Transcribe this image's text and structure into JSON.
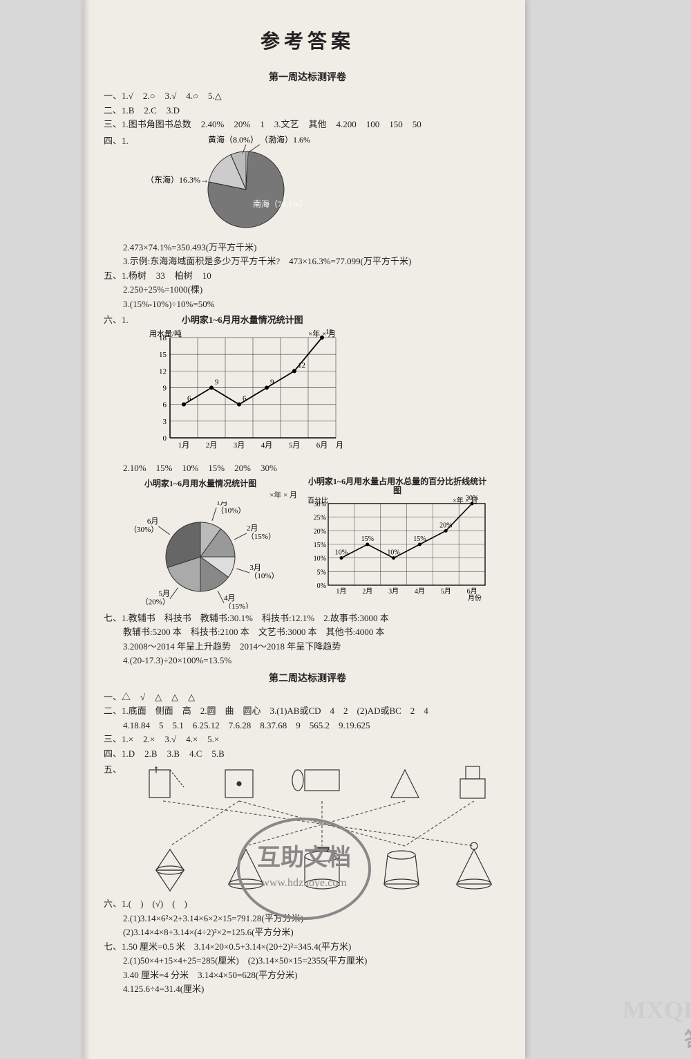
{
  "title": "参考答案",
  "week1": {
    "heading": "第一周达标测评卷",
    "q1": [
      "一、1.√",
      "2.○",
      "3.√",
      "4.○",
      "5.△"
    ],
    "q2": [
      "二、1.B",
      "2.C",
      "3.D"
    ],
    "q3": [
      "三、1.图书角图书总数",
      "2.40%",
      "20%",
      "1",
      "3.文艺",
      "其他",
      "4.200",
      "100",
      "150",
      "50"
    ],
    "q4_label": "四、1.",
    "pie1": {
      "title": "",
      "slices": [
        {
          "label": "南海",
          "pct": 74.1,
          "color": "#777"
        },
        {
          "label": "东海",
          "pct": 16.3,
          "color": "#ccc"
        },
        {
          "label": "黄海",
          "pct": 8.0,
          "color": "#bbb"
        },
        {
          "label": "渤海",
          "pct": 1.6,
          "color": "#eee"
        }
      ],
      "label_donghai": "（东海）16.3%→",
      "label_huanghai": "黄海（8.0%）",
      "label_bohai": "（渤海）1.6%",
      "label_nanhai": "南海（74.1%）"
    },
    "q4_2": "2.473×74.1%=350.493(万平方千米)",
    "q4_3": "3.示例:东海海域面积是多少万平方千米?　473×16.3%=77.099(万平方千米)",
    "q5_1": [
      "五、1.杨树",
      "33",
      "柏树",
      "10"
    ],
    "q5_2": "2.250÷25%=1000(棵)",
    "q5_3": "3.(15%-10%)÷10%=50%",
    "q6_label": "六、1.",
    "line_chart": {
      "title": "小明家1~6月用水量情况统计图",
      "ylabel": "用水量/吨",
      "date": "×年 × 月",
      "xlabel": "月份",
      "categories": [
        "1月",
        "2月",
        "3月",
        "4月",
        "5月",
        "6月"
      ],
      "values": [
        6,
        9,
        6,
        9,
        12,
        18
      ],
      "ylim": [
        0,
        18
      ],
      "ytick_step": 3,
      "grid_color": "#555",
      "background": "#f0ede6",
      "line_color": "#000"
    },
    "q6_2": [
      "2.10%",
      "15%",
      "10%",
      "15%",
      "20%",
      "30%"
    ],
    "pie2": {
      "title": "小明家1~6月用水量情况统计图",
      "date": "×年 × 月",
      "slices": [
        {
          "label": "1月",
          "pct": 10,
          "text": "（10%）"
        },
        {
          "label": "2月",
          "pct": 15,
          "text": "（15%）"
        },
        {
          "label": "3月",
          "pct": 10,
          "text": "（10%）"
        },
        {
          "label": "4月",
          "pct": 15,
          "text": "（15%）"
        },
        {
          "label": "5月",
          "pct": 20,
          "text": "（20%）"
        },
        {
          "label": "6月",
          "pct": 30,
          "text": "（30%）"
        }
      ]
    },
    "line_chart2": {
      "title": "小明家1~6月用水量占用水总量的百分比折线统计图",
      "date": "×年 × 月",
      "ylabel": "百分比",
      "categories": [
        "1月",
        "2月",
        "3月",
        "4月",
        "5月",
        "6月"
      ],
      "values": [
        10,
        15,
        10,
        15,
        20,
        30
      ],
      "pctlabels": [
        "10%",
        "15%",
        "10%",
        "15%",
        "20%",
        "30%"
      ],
      "xlabel": "月份",
      "ylim": [
        0,
        30
      ],
      "ytick_step": 5
    },
    "q7_1": "七、1.教辅书　科技书　教辅书:30.1%　科技书:12.1%　2.故事书:3000 本",
    "q7_1b": "教辅书:5200 本　科技书:2100 本　文艺书:3000 本　其他书:4000 本",
    "q7_3": "3.2008～2014 年呈上升趋势　2014～2018 年呈下降趋势",
    "q7_4": "4.(20-17.3)÷20×100%=13.5%"
  },
  "week2": {
    "heading": "第二周达标测评卷",
    "q1": [
      "一、△",
      "√",
      "△",
      "△",
      "△"
    ],
    "q2_1": "二、1.底面　侧面　高　2.圆　曲　圆心　3.(1)AB或CD　4　2　(2)AD或BC　2　4",
    "q2_2": "4.18.84　5　5.1　6.25.12　7.6.28　8.37.68　9　565.2　9.19.625",
    "q3": [
      "三、1.×",
      "2.×",
      "3.√",
      "4.×",
      "5.×"
    ],
    "q4": [
      "四、1.D",
      "2.B",
      "3.B",
      "4.C",
      "5.B"
    ],
    "q5_label": "五、",
    "q6_1": "六、1.(　)　(√)　(　)",
    "q6_2": "2.(1)3.14×6²×2+3.14×6×2×15=791.28(平方分米)",
    "q6_2b": "(2)3.14×4×8+3.14×(4÷2)²×2=125.6(平方分米)",
    "q7_1": "七、1.50 厘米=0.5 米　3.14×20×0.5+3.14×(20÷2)²=345.4(平方米)",
    "q7_2": "2.(1)50×4+15×4+25=285(厘米)　(2)3.14×50×15=2355(平方厘米)",
    "q7_3": "3.40 厘米=4 分米　3.14×4×50=628(平方分米)",
    "q7_4": "4.125.6÷4=31.4(厘米)"
  },
  "stamp": {
    "line1": "互助文档",
    "line2": "www.hdzuoye.com"
  },
  "watermarks": {
    "br1": "答案圈",
    "br2": "MXQE.COM"
  }
}
